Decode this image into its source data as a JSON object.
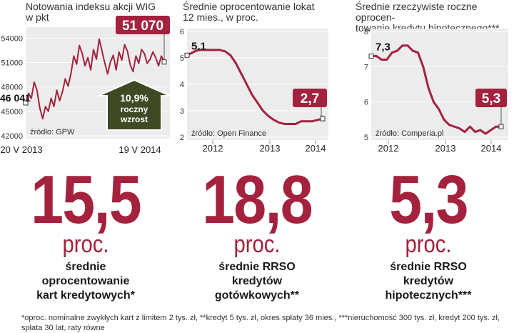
{
  "panels": [
    {
      "title": "Notowania indeksu akcji WIG\nw pkt",
      "source": "źródło: GPW",
      "callout": "51 070",
      "left_value": "46 041",
      "badge_line1": "10,9%",
      "badge_line2": "roczny",
      "badge_line3": "wzrost",
      "chart_data": {
        "type": "line",
        "title": "Notowania indeksu akcji WIG w pkt",
        "ylim": [
          42000,
          55000
        ],
        "yticks": [
          42000,
          45000,
          48000,
          51000,
          54000
        ],
        "ytick_labels": [
          "42000",
          "45000",
          "48000",
          "51000",
          "54000"
        ],
        "xtick_labels": [
          "20 V 2013",
          "19 V 2014"
        ],
        "y": [
          46041,
          47200,
          46600,
          48600,
          47600,
          45400,
          44100,
          45600,
          45000,
          46600,
          45600,
          47600,
          46300,
          47400,
          49000,
          48100,
          49600,
          51800,
          50800,
          53100,
          52100,
          50600,
          51600,
          50100,
          52600,
          51400,
          53900,
          52400,
          50900,
          49600,
          51100,
          51900,
          50100,
          52300,
          51300,
          53200,
          52400,
          50700,
          49900,
          51800,
          50900,
          52600,
          52100,
          50900,
          51400,
          52300,
          51600,
          50600,
          51800,
          51070
        ]
      }
    },
    {
      "title": "Średnie oprocentowanie lokat\n12 mies., w proc.",
      "source": "źródło: Open Finance",
      "start_label": "5,1",
      "callout": "2,7",
      "chart_data": {
        "type": "line",
        "title": "Średnie oprocentowanie lokat 12 mies., w proc.",
        "ylim": [
          2,
          6
        ],
        "yticks": [
          2,
          3,
          4,
          5,
          6
        ],
        "ytick_labels": [
          "2",
          "3",
          "4",
          "5",
          "6"
        ],
        "xtick_labels": [
          "2012",
          "2013",
          "2014"
        ],
        "y": [
          5.1,
          5.2,
          5.3,
          5.3,
          5.3,
          5.3,
          5.3,
          5.25,
          5.1,
          4.8,
          4.4,
          4.0,
          3.6,
          3.3,
          3.0,
          2.8,
          2.65,
          2.55,
          2.5,
          2.5,
          2.5,
          2.6,
          2.6,
          2.6,
          2.65,
          2.7
        ]
      }
    },
    {
      "title": "Średnie rzeczywiste roczne oprocen-\ntowanie kredytu hipotecznego***",
      "source": "źródło: Comperia.pl",
      "start_label": "7,3",
      "callout": "5,3",
      "chart_data": {
        "type": "line",
        "title": "Średnie rzeczywiste roczne oprocentowanie kredytu hipotecznego***",
        "ylim": [
          5,
          8
        ],
        "yticks": [
          5,
          6,
          7,
          8
        ],
        "ytick_labels": [
          "5",
          "6",
          "7",
          "8"
        ],
        "xtick_labels": [
          "2012",
          "2013",
          "2014"
        ],
        "y": [
          7.3,
          7.3,
          7.2,
          7.2,
          7.4,
          7.45,
          7.6,
          7.6,
          7.45,
          7.4,
          7.0,
          6.4,
          6.0,
          5.8,
          5.5,
          5.35,
          5.3,
          5.25,
          5.15,
          5.3,
          5.15,
          5.2,
          5.1,
          5.2,
          5.3,
          5.3
        ]
      }
    }
  ],
  "big": [
    {
      "number": "15,5",
      "unit": "proc.",
      "desc": "średnie\noprocentowanie\nkart kredytowych*"
    },
    {
      "number": "18,8",
      "unit": "proc.",
      "desc": "średnie RRSO\nkredytów\ngotówkowych**"
    },
    {
      "number": "5,3",
      "unit": "proc.",
      "desc": "średnie RRSO\nkredytów\nhipotecznych***"
    }
  ],
  "footnote": "*oproc. nominalne zwykłych kart z limitem 2 tys. zł, **kredyt 5 tys. zł, okres spłaty 36 mies., ***nieruchomość 300 tys. zł, kredyt 200 tys. zł, spłata 30 lat, raty równe",
  "colors": {
    "accent": "#a4223d",
    "panel_bg": "#ececec",
    "badge": "#3f4a24"
  }
}
